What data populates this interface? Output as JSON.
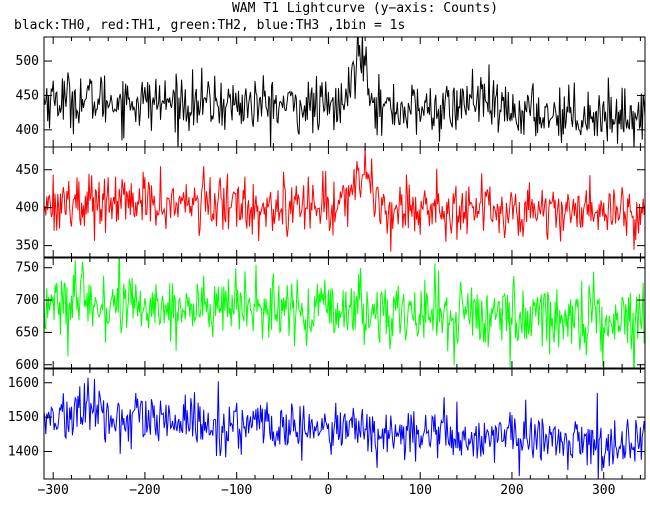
{
  "title": "WAM T1 Lightcurve (y−axis: Counts)",
  "subtitle": "black:TH0, red:TH1, green:TH2, blue:TH3 ,1bin = 1s",
  "chart_data": [
    {
      "type": "line",
      "series": [
        {
          "name": "TH0",
          "color": "#000000"
        }
      ],
      "xlim": [
        -310,
        345
      ],
      "ylim": [
        375,
        535
      ],
      "yticks": [
        400,
        450,
        500
      ],
      "signal": {
        "baseline": 445,
        "end": 420,
        "noise": 20,
        "peak": 85,
        "peak_center": 35,
        "peak_width": 8,
        "bump": 20,
        "bump_center": 160
      },
      "grid": false
    },
    {
      "type": "line",
      "series": [
        {
          "name": "TH1",
          "color": "#ff0000"
        }
      ],
      "xlim": [
        -310,
        345
      ],
      "ylim": [
        335,
        480
      ],
      "yticks": [
        350,
        400,
        450
      ],
      "signal": {
        "baseline": 408,
        "end": 395,
        "noise": 19,
        "peak": 45,
        "peak_center": 35,
        "peak_width": 10,
        "bump": 0,
        "bump_center": 0
      },
      "grid": false
    },
    {
      "type": "line",
      "series": [
        {
          "name": "TH2",
          "color": "#00ff00"
        }
      ],
      "xlim": [
        -310,
        345
      ],
      "ylim": [
        595,
        765
      ],
      "yticks": [
        600,
        650,
        700,
        750
      ],
      "signal": {
        "baseline": 695,
        "end": 670,
        "noise": 26,
        "peak": 0,
        "peak_center": 0,
        "peak_width": 1,
        "bump": 0,
        "bump_center": 0
      },
      "grid": false
    },
    {
      "type": "line",
      "series": [
        {
          "name": "TH3",
          "color": "#0000ff"
        }
      ],
      "xlim": [
        -310,
        345
      ],
      "ylim": [
        1320,
        1640
      ],
      "yticks": [
        1400,
        1500,
        1600
      ],
      "signal": {
        "baseline": 1500,
        "end": 1420,
        "noise": 38,
        "peak": 0,
        "peak_center": 0,
        "peak_width": 1,
        "bump": 30,
        "bump_center": -260
      },
      "grid": false
    }
  ],
  "x_axis": {
    "ticks": [
      -300,
      -200,
      -100,
      0,
      100,
      200,
      300
    ]
  }
}
